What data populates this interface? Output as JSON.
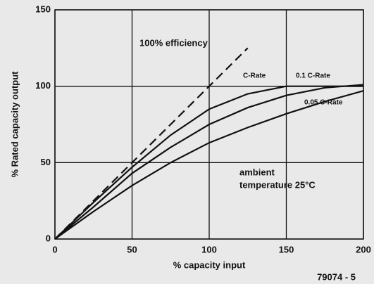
{
  "chart_data": {
    "type": "line",
    "x": [
      0,
      25,
      50,
      75,
      100,
      125,
      150,
      175,
      200
    ],
    "series": [
      {
        "name": "100% efficiency",
        "color": "#111111",
        "dashed": true,
        "values": [
          0,
          25,
          50,
          75,
          100,
          125,
          null,
          null,
          null
        ]
      },
      {
        "name": "C-Rate",
        "color": "#111111",
        "values": [
          0,
          24,
          47,
          68,
          85,
          95,
          100,
          100,
          100
        ]
      },
      {
        "name": "0.1 C-Rate",
        "color": "#111111",
        "values": [
          0,
          21,
          43,
          60,
          75,
          86,
          94,
          99,
          101
        ]
      },
      {
        "name": "0.05 C-Rate",
        "color": "#111111",
        "values": [
          0,
          18,
          35,
          50,
          63,
          73,
          82,
          90,
          97
        ]
      }
    ],
    "xlabel": "% capacity input",
    "ylabel": "% Rated capacity output",
    "xlim": [
      0,
      200
    ],
    "ylim": [
      0,
      150
    ],
    "xticks": [
      0,
      50,
      100,
      150,
      200
    ],
    "yticks": [
      0,
      50,
      100,
      150
    ],
    "grid": true,
    "annotations": [
      "ambient",
      "temperature  25°C",
      "79074 - 5"
    ]
  }
}
